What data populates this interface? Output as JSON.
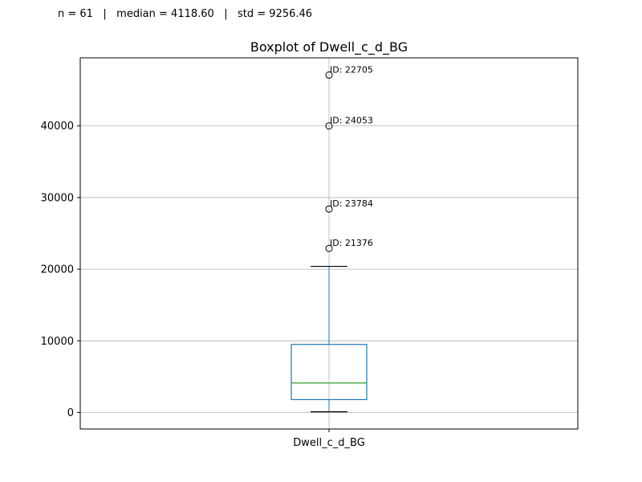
{
  "stats": {
    "n_label": "n = 61",
    "sep1": "|",
    "median_label": "median = 4118.60",
    "sep2": "|",
    "std_label": "std = 9256.46"
  },
  "chart_data": {
    "type": "box",
    "title": "Boxplot of Dwell_c_d_BG",
    "xlabel": "",
    "ylabel": "",
    "categories": [
      "Dwell_c_d_BG"
    ],
    "ylim": [
      -2300,
      49500
    ],
    "yticks": [
      0,
      10000,
      20000,
      30000,
      40000
    ],
    "ytick_labels": [
      "0",
      "10000",
      "20000",
      "30000",
      "40000"
    ],
    "grid": true,
    "box": {
      "whisker_low": 100,
      "q1": 1800,
      "median": 4118.6,
      "q3": 9500,
      "whisker_high": 20400
    },
    "outliers": [
      {
        "value": 47100,
        "label": "ID: 22705"
      },
      {
        "value": 40000,
        "label": "ID: 24053"
      },
      {
        "value": 28400,
        "label": "ID: 23784"
      },
      {
        "value": 22900,
        "label": "ID: 21376"
      }
    ],
    "colors": {
      "box": "#1f77b4",
      "median": "#2ca02c",
      "whisker_cap": "#000000",
      "outlier": "#000000",
      "grid": "#b0b0b0"
    }
  }
}
